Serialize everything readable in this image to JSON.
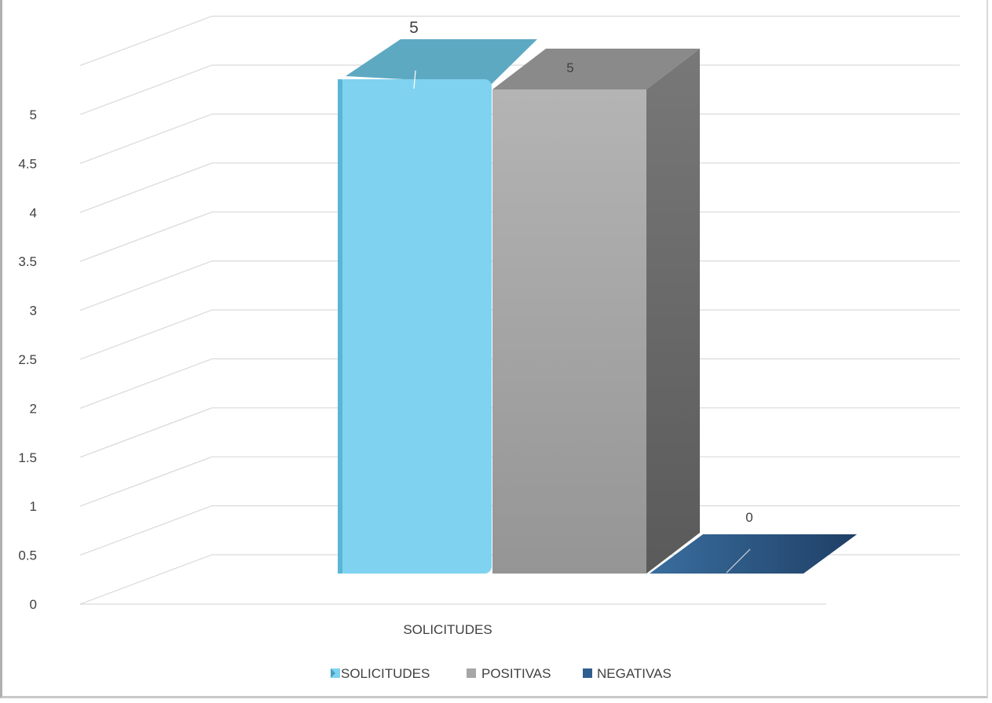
{
  "chart_data": {
    "type": "bar",
    "categories": [
      "SOLICITUDES"
    ],
    "series": [
      {
        "name": "SOLICITUDES",
        "values": [
          5
        ],
        "color": "#7fd3f0"
      },
      {
        "name": "POSITIVAS",
        "values": [
          5
        ],
        "color": "#a6a6a6"
      },
      {
        "name": "NEGATIVAS",
        "values": [
          0
        ],
        "color": "#2f5f8f"
      }
    ],
    "y_ticks": [
      "0",
      "0.5",
      "1",
      "1.5",
      "2",
      "2.5",
      "3",
      "3.5",
      "4",
      "4.5",
      "5"
    ],
    "ylim": [
      0,
      5
    ],
    "title": "",
    "xlabel": "",
    "ylabel": "",
    "grid": true,
    "legend_position": "bottom",
    "style": "3d"
  }
}
